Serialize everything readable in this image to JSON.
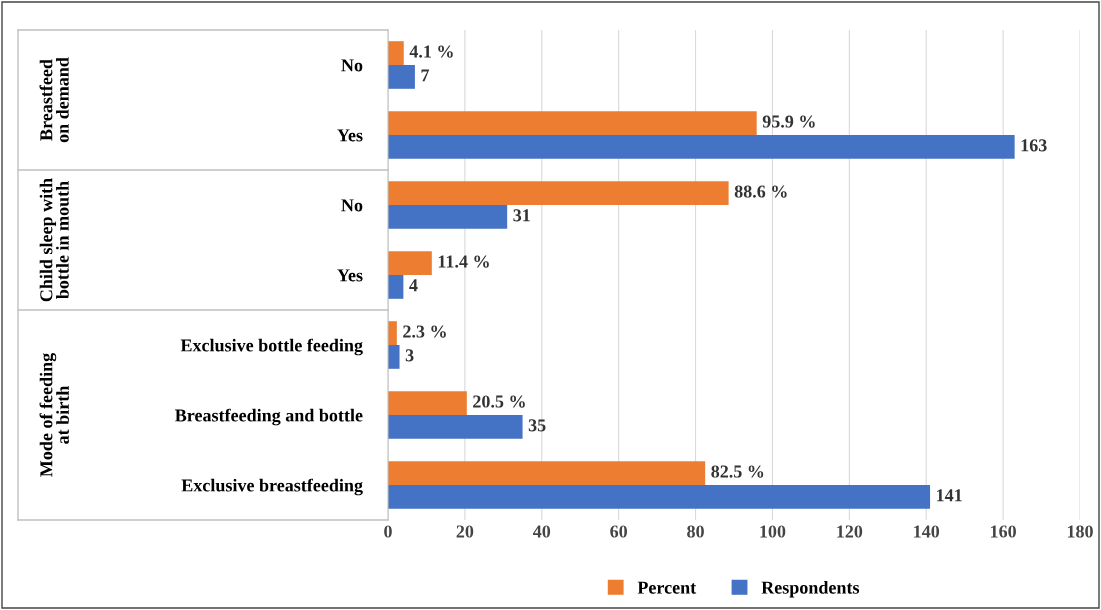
{
  "chart_data": {
    "type": "bar",
    "orientation": "horizontal",
    "categories": [
      "No",
      "Yes",
      "No",
      "Yes",
      "Exclusive bottle feeding",
      "Breastfeeding and bottle",
      "Exclusive breastfeeding"
    ],
    "series": [
      {
        "name": "Percent",
        "color": "#ed7d31",
        "values": [
          4.1,
          95.9,
          88.6,
          11.4,
          2.3,
          20.5,
          82.5
        ],
        "value_labels": [
          "4.1 %",
          "95.9 %",
          "88.6 %",
          "11.4 %",
          "2.3 %",
          "20.5 %",
          "82.5 %"
        ]
      },
      {
        "name": "Respondents",
        "color": "#4472c4",
        "values": [
          7,
          163,
          31,
          4,
          3,
          35,
          141
        ],
        "value_labels": [
          "7",
          "163",
          "31",
          "4",
          "3",
          "35",
          "141"
        ]
      }
    ],
    "xlim": [
      0,
      180
    ],
    "xticks": [
      0,
      20,
      40,
      60,
      80,
      100,
      120,
      140,
      160,
      180
    ],
    "grid": "x",
    "legend": "bottom",
    "annotations": [
      "Breastfeed on demand",
      "Child sleep with bottle in mouth",
      "Mode of feeding at birth"
    ]
  }
}
